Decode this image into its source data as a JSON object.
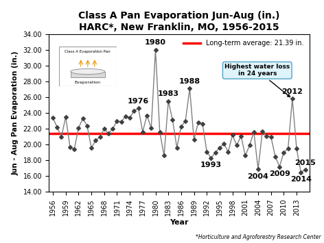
{
  "chart_data": {
    "type": "line",
    "title": "Class A Pan Evaporation Jun-Aug (in.)\nHARC*, New Franklin, MO, 1956-2015",
    "x_label": "Year",
    "y_label": "Jun - Aug Pan Evaporation (in.)",
    "x": [
      1956,
      1957,
      1958,
      1959,
      1960,
      1961,
      1962,
      1963,
      1964,
      1965,
      1966,
      1967,
      1968,
      1969,
      1970,
      1971,
      1972,
      1973,
      1974,
      1975,
      1976,
      1977,
      1978,
      1979,
      1980,
      1981,
      1982,
      1983,
      1984,
      1985,
      1986,
      1987,
      1988,
      1989,
      1990,
      1991,
      1992,
      1993,
      1994,
      1995,
      1996,
      1997,
      1998,
      1999,
      2000,
      2001,
      2002,
      2003,
      2004,
      2005,
      2006,
      2007,
      2008,
      2009,
      2010,
      2011,
      2012,
      2013,
      2014,
      2015
    ],
    "values": [
      23.4,
      22.2,
      21.0,
      23.5,
      19.7,
      19.4,
      22.1,
      23.3,
      22.4,
      19.6,
      20.5,
      21.0,
      22.0,
      21.4,
      22.0,
      23.0,
      22.9,
      23.6,
      23.4,
      24.3,
      24.6,
      21.6,
      23.7,
      22.1,
      32.0,
      21.6,
      18.6,
      25.5,
      23.1,
      19.6,
      22.3,
      23.0,
      27.1,
      20.6,
      22.8,
      22.6,
      19.1,
      18.3,
      19.0,
      19.6,
      20.1,
      19.1,
      21.2,
      19.9,
      21.1,
      18.6,
      19.9,
      21.6,
      16.9,
      21.7,
      21.1,
      21.0,
      18.5,
      17.2,
      19.0,
      19.5,
      25.8,
      19.5,
      16.5,
      16.8
    ],
    "color": "#7f7f7f",
    "marker": "diamond",
    "xlim": [
      1955,
      2016
    ],
    "xticks": [
      1956,
      1959,
      1962,
      1965,
      1968,
      1971,
      1974,
      1977,
      1980,
      1983,
      1986,
      1989,
      1992,
      1995,
      1998,
      2001,
      2004,
      2007,
      2010,
      2013
    ],
    "ylim": [
      14,
      34
    ],
    "yticks": [
      {
        "value": 14,
        "label": "14.00"
      },
      {
        "value": 16,
        "label": "16.00"
      },
      {
        "value": 18,
        "label": "18.00"
      },
      {
        "value": 20,
        "label": "20.00"
      },
      {
        "value": 22,
        "label": "22.00"
      },
      {
        "value": 24,
        "label": "24.00"
      },
      {
        "value": 26,
        "label": "26.00"
      },
      {
        "value": 28,
        "label": "28.00"
      },
      {
        "value": 30,
        "label": "30.00"
      },
      {
        "value": 32,
        "label": "32.00"
      },
      {
        "value": 34,
        "label": "34.00"
      }
    ],
    "reference_line": {
      "name": "Long-term average: 21.39 in.",
      "value": 21.39,
      "color": "#ff0000"
    },
    "legend": "upper right",
    "annotations": [
      {
        "text": "1976",
        "x": 1976
      },
      {
        "text": "1980",
        "x": 1980
      },
      {
        "text": "1983",
        "x": 1983
      },
      {
        "text": "1988",
        "x": 1988
      },
      {
        "text": "1993",
        "x": 1993
      },
      {
        "text": "2004",
        "x": 2004
      },
      {
        "text": "2009",
        "x": 2009
      },
      {
        "text": "2012",
        "x": 2012
      },
      {
        "text": "2014",
        "x": 2014
      },
      {
        "text": "2015",
        "x": 2015
      }
    ],
    "callout": {
      "text": "Highest water loss in 24 years",
      "x": 2012
    },
    "footnote": "*Horticulture and Agroforestry Research Center",
    "inset": {
      "title": "Class A Evaporation Pan",
      "label": "Evaporation"
    }
  }
}
